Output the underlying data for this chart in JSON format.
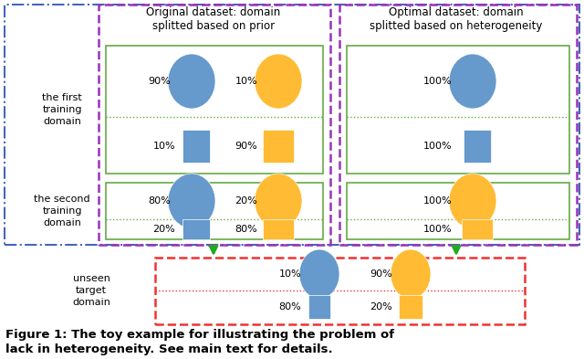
{
  "left_panel_title": "Original dataset: domain\nsplitted based on prior",
  "right_panel_title": "Optimal dataset: domain\nsplitted based on heterogeneity",
  "blue_color": "#6699cc",
  "orange_color": "#ffbb33",
  "purple_border": "#9933bb",
  "green_border": "#66aa44",
  "red_border": "#ee3333",
  "blue_dash_border": "#4466bb",
  "arrow_color": "#22aa22",
  "bg_color": "#ffffff",
  "left_label1": "the first\ntraining\ndomain",
  "left_label2": "the second\ntraining\ndomain",
  "bottom_label": "unseen\ntarget\ndomain",
  "caption_line1": "Figure 1: The toy example for illustrating the problem of",
  "caption_line2": "lack in heterogeneity. See main text for details."
}
